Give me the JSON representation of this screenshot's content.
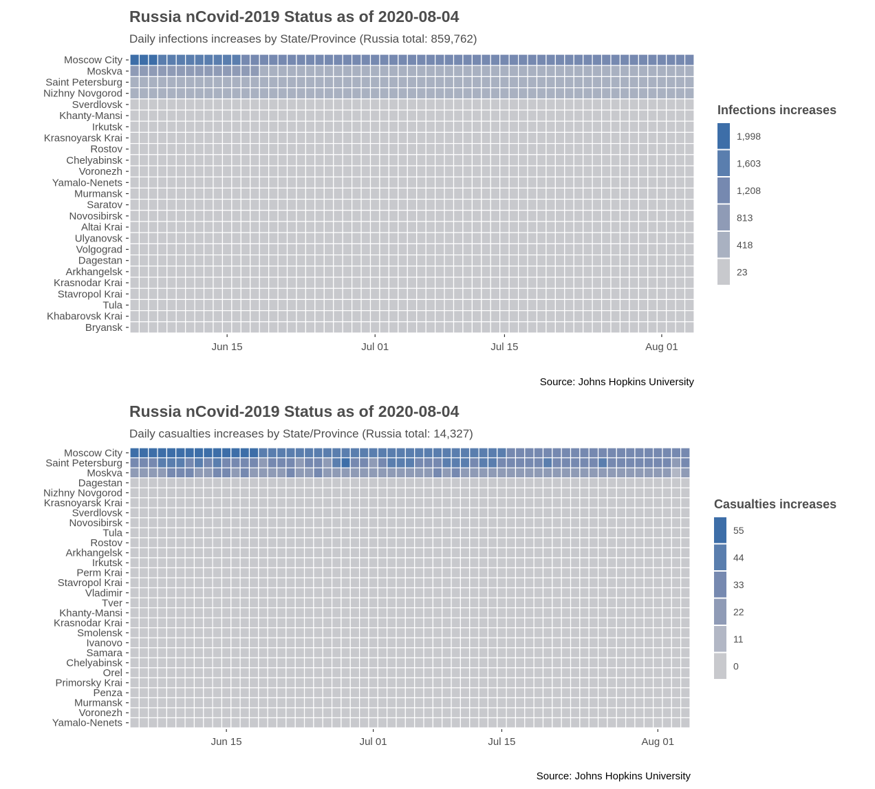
{
  "chart_data": [
    {
      "type": "heatmap",
      "title": "Russia nCovid-2019 Status as of 2020-08-04",
      "subtitle": "Daily infections increases by State/Province (Russia total: 859,762)",
      "caption": "Source: Johns Hopkins University",
      "legend_title": "Infections increases",
      "legend_values": [
        "1,998",
        "1,603",
        "1,208",
        "813",
        "418",
        "23"
      ],
      "legend_colors": [
        "#3d6ea8",
        "#5a7eae",
        "#7689b0",
        "#8f9bb6",
        "#a9b1c1",
        "#c8c9cd"
      ],
      "x_ticks": [
        "Jun 15",
        "Jul 01",
        "Jul 15",
        "Aug 01"
      ],
      "x_range": [
        "2020-06-05",
        "2020-08-04"
      ],
      "rows": [
        "Moscow City",
        "Moskva",
        "Saint Petersburg",
        "Nizhny Novgorod",
        "Sverdlovsk",
        "Khanty-Mansi",
        "Irkutsk",
        "Krasnoyarsk Krai",
        "Rostov",
        "Chelyabinsk",
        "Voronezh",
        "Yamalo-Nenets",
        "Murmansk",
        "Saratov",
        "Novosibirsk",
        "Altai Krai",
        "Ulyanovsk",
        "Volgograd",
        "Dagestan",
        "Arkhangelsk",
        "Krasnodar Krai",
        "Stavropol Krai",
        "Tula",
        "Khabarovsk Krai",
        "Bryansk"
      ],
      "approx_levels": {
        "Moscow City": [
          5,
          5,
          5,
          4,
          4,
          4,
          4,
          4,
          4,
          4,
          4,
          4,
          3,
          3,
          3,
          3,
          3,
          3,
          3,
          3,
          3,
          3,
          3,
          3,
          3,
          3,
          3,
          3,
          3,
          3,
          3,
          3,
          3,
          3,
          3,
          3,
          3,
          3,
          3,
          3,
          3,
          3,
          3,
          3,
          3,
          3,
          3,
          3,
          3,
          3,
          3,
          3,
          3,
          3,
          3,
          3,
          3,
          3,
          3,
          3,
          3
        ],
        "Moskva": [
          2,
          2,
          2,
          2,
          2,
          2,
          2,
          2,
          2,
          2,
          2,
          2,
          2,
          2,
          1,
          1,
          1,
          1,
          1,
          1,
          1,
          1,
          1,
          1,
          1,
          1,
          1,
          1,
          1,
          1,
          1,
          1,
          1,
          1,
          1,
          1,
          1,
          1,
          1,
          1,
          1,
          1,
          1,
          1,
          1,
          1,
          1,
          1,
          1,
          1,
          1,
          1,
          1,
          1,
          1,
          1,
          1,
          1,
          1,
          1,
          1
        ],
        "Saint Petersburg": [
          1,
          1,
          1,
          1,
          1,
          1,
          1,
          1,
          1,
          1,
          1,
          1,
          1,
          1,
          1,
          1,
          1,
          1,
          1,
          1,
          1,
          1,
          1,
          1,
          1,
          1,
          1,
          1,
          1,
          1,
          1,
          1,
          1,
          1,
          1,
          1,
          1,
          1,
          1,
          1,
          1,
          1,
          1,
          1,
          1,
          1,
          1,
          1,
          1,
          1,
          1,
          1,
          1,
          1,
          1,
          1,
          1,
          1,
          1,
          1,
          1
        ],
        "Nizhny Novgorod": [
          1,
          1,
          1,
          1,
          1,
          1,
          1,
          1,
          1,
          1,
          1,
          1,
          1,
          1,
          1,
          1,
          1,
          1,
          1,
          1,
          1,
          1,
          1,
          1,
          1,
          1,
          1,
          1,
          1,
          1,
          1,
          1,
          1,
          1,
          1,
          1,
          1,
          1,
          1,
          1,
          1,
          1,
          1,
          1,
          1,
          1,
          1,
          1,
          1,
          1,
          1,
          1,
          1,
          1,
          1,
          1,
          1,
          1,
          1,
          1,
          1
        ]
      }
    },
    {
      "type": "heatmap",
      "title": "Russia nCovid-2019 Status as of 2020-08-04",
      "subtitle": "Daily casualties increases by State/Province (Russia total: 14,327)",
      "caption": "Source: Johns Hopkins University",
      "legend_title": "Casualties increases",
      "legend_values": [
        "55",
        "44",
        "33",
        "22",
        "11",
        "0"
      ],
      "legend_colors": [
        "#3d6ea8",
        "#5a7eae",
        "#7689b0",
        "#8f9bb6",
        "#b2b7c5",
        "#c8c9cd"
      ],
      "x_ticks": [
        "Jun 15",
        "Jul 01",
        "Jul 15",
        "Aug 01"
      ],
      "x_range": [
        "2020-06-05",
        "2020-08-04"
      ],
      "rows": [
        "Moscow City",
        "Saint Petersburg",
        "Moskva",
        "Dagestan",
        "Nizhny Novgorod",
        "Krasnoyarsk Krai",
        "Sverdlovsk",
        "Novosibirsk",
        "Tula",
        "Rostov",
        "Arkhangelsk",
        "Irkutsk",
        "Perm Krai",
        "Stavropol Krai",
        "Vladimir",
        "Tver",
        "Khanty-Mansi",
        "Krasnodar Krai",
        "Smolensk",
        "Ivanovo",
        "Samara",
        "Chelyabinsk",
        "Orel",
        "Primorsky Krai",
        "Penza",
        "Murmansk",
        "Voronezh",
        "Yamalo-Nenets"
      ],
      "approx_levels": {
        "Moscow City": [
          5,
          5,
          5,
          5,
          5,
          5,
          5,
          5,
          5,
          5,
          5,
          5,
          5,
          5,
          4,
          4,
          4,
          4,
          4,
          4,
          4,
          4,
          4,
          4,
          4,
          4,
          4,
          4,
          4,
          4,
          4,
          4,
          4,
          4,
          4,
          4,
          4,
          4,
          4,
          4,
          4,
          3,
          3,
          3,
          3,
          3,
          3,
          3,
          3,
          3,
          3,
          3,
          3,
          3,
          3,
          3,
          3,
          3,
          3,
          3,
          3
        ],
        "Saint Petersburg": [
          3,
          3,
          3,
          4,
          4,
          4,
          3,
          4,
          3,
          4,
          3,
          3,
          3,
          3,
          2,
          3,
          3,
          3,
          2,
          3,
          3,
          2,
          4,
          5,
          3,
          3,
          2,
          3,
          4,
          4,
          4,
          3,
          3,
          3,
          4,
          4,
          4,
          3,
          4,
          4,
          3,
          3,
          3,
          3,
          3,
          4,
          3,
          3,
          3,
          3,
          3,
          4,
          3,
          3,
          3,
          3,
          3,
          3,
          3,
          2,
          3
        ],
        "Moskva": [
          2,
          2,
          2,
          2,
          3,
          3,
          3,
          2,
          2,
          3,
          3,
          2,
          3,
          2,
          2,
          2,
          2,
          3,
          2,
          2,
          3,
          2,
          2,
          2,
          2,
          2,
          2,
          2,
          2,
          2,
          2,
          2,
          2,
          3,
          2,
          3,
          2,
          2,
          2,
          2,
          2,
          2,
          2,
          2,
          2,
          2,
          2,
          2,
          2,
          2,
          2,
          2,
          2,
          2,
          2,
          2,
          2,
          2,
          2,
          1,
          2
        ]
      }
    }
  ]
}
